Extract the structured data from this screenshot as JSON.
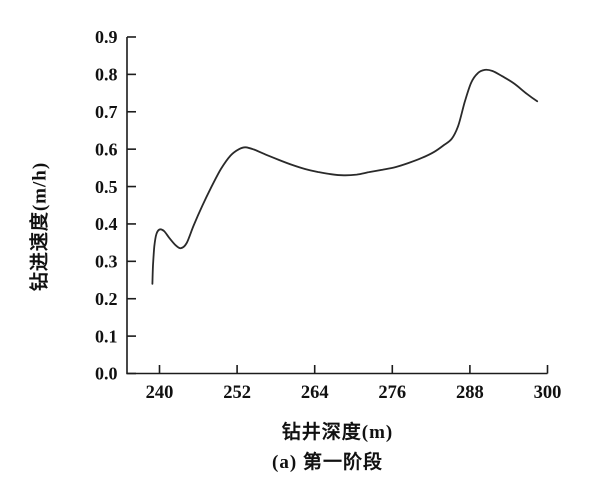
{
  "figure": {
    "background_color": "#ffffff",
    "text_color": "#111111"
  },
  "chart_data": {
    "type": "line",
    "title": "",
    "xlabel": "钻井深度(m)",
    "ylabel": "钻进速度(m/h)",
    "caption": "(a) 第一阶段",
    "xlim": [
      234.9,
      300
    ],
    "ylim": [
      0.0,
      0.9
    ],
    "xticks": [
      240,
      252,
      264,
      276,
      288,
      300
    ],
    "xticklabels": [
      "240",
      "252",
      "264",
      "276",
      "288",
      "300"
    ],
    "yticks": [
      0.0,
      0.1,
      0.2,
      0.3,
      0.4,
      0.5,
      0.6,
      0.7,
      0.8,
      0.9
    ],
    "yticklabels": [
      "0.0",
      "0.1",
      "0.2",
      "0.3",
      "0.4",
      "0.5",
      "0.6",
      "0.7",
      "0.8",
      "0.9"
    ],
    "grid": false,
    "legend": null,
    "axis_color": "#1c1c1c",
    "line_color": "#2a2a2a",
    "series": [
      {
        "name": "钻进速度",
        "points": [
          [
            238.9,
            0.24
          ],
          [
            239.0,
            0.29
          ],
          [
            239.2,
            0.34
          ],
          [
            239.5,
            0.372
          ],
          [
            240.0,
            0.385
          ],
          [
            240.7,
            0.381
          ],
          [
            241.5,
            0.363
          ],
          [
            242.5,
            0.343
          ],
          [
            243.3,
            0.335
          ],
          [
            244.2,
            0.349
          ],
          [
            245.3,
            0.397
          ],
          [
            246.6,
            0.448
          ],
          [
            248.0,
            0.498
          ],
          [
            249.5,
            0.547
          ],
          [
            251.0,
            0.583
          ],
          [
            252.3,
            0.6
          ],
          [
            253.3,
            0.605
          ],
          [
            254.6,
            0.599
          ],
          [
            256.5,
            0.585
          ],
          [
            258.5,
            0.571
          ],
          [
            260.5,
            0.558
          ],
          [
            262.5,
            0.547
          ],
          [
            264.5,
            0.539
          ],
          [
            266.5,
            0.533
          ],
          [
            268.5,
            0.53
          ],
          [
            270.5,
            0.532
          ],
          [
            272.5,
            0.539
          ],
          [
            274.5,
            0.545
          ],
          [
            276.5,
            0.552
          ],
          [
            278.5,
            0.563
          ],
          [
            280.5,
            0.576
          ],
          [
            282.5,
            0.593
          ],
          [
            284.0,
            0.611
          ],
          [
            285.2,
            0.628
          ],
          [
            286.2,
            0.663
          ],
          [
            287.2,
            0.726
          ],
          [
            288.2,
            0.778
          ],
          [
            289.2,
            0.803
          ],
          [
            290.3,
            0.812
          ],
          [
            291.5,
            0.809
          ],
          [
            293.0,
            0.795
          ],
          [
            294.8,
            0.776
          ],
          [
            296.8,
            0.748
          ],
          [
            298.4,
            0.728
          ]
        ]
      }
    ]
  }
}
